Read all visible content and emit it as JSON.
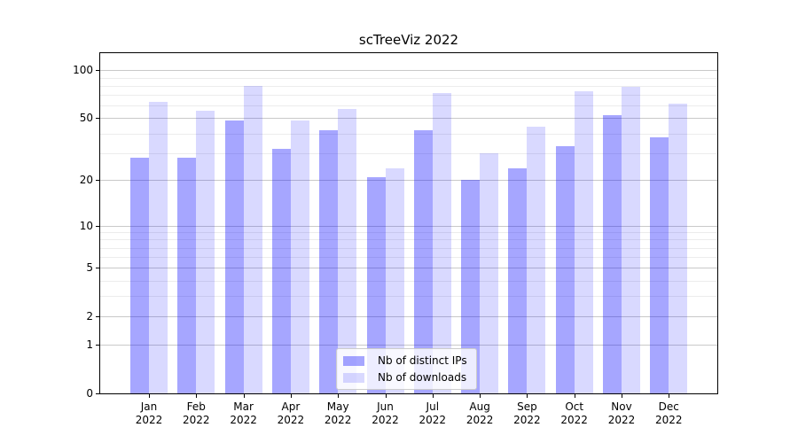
{
  "title": "scTreeViz 2022",
  "chart_data": {
    "type": "bar",
    "title": "scTreeViz 2022",
    "categories": [
      "Jan 2022",
      "Feb 2022",
      "Mar 2022",
      "Apr 2022",
      "May 2022",
      "Jun 2022",
      "Jul 2022",
      "Aug 2022",
      "Sep 2022",
      "Oct 2022",
      "Nov 2022",
      "Dec 2022"
    ],
    "series": [
      {
        "name": "Nb of distinct IPs",
        "color": "rgba(0,0,255,0.35)",
        "color_hex_on_white": "#a6a6f6",
        "values": [
          28,
          28,
          48,
          32,
          42,
          21,
          42,
          20,
          24,
          33,
          52,
          38
        ]
      },
      {
        "name": "Nb of downloads",
        "color": "rgba(0,0,255,0.15)",
        "color_hex_on_white": "#dbdbfb",
        "values": [
          63,
          56,
          80,
          48,
          57,
          24,
          72,
          30,
          44,
          74,
          79,
          62
        ]
      }
    ],
    "xlabel": "",
    "ylabel": "",
    "yscale": "log1p",
    "ylim": [
      0,
      128
    ],
    "yticks": [
      0,
      1,
      2,
      5,
      10,
      20,
      50,
      100
    ],
    "minor_gridlines": [
      3,
      4,
      6,
      7,
      8,
      9,
      30,
      40,
      60,
      70,
      80,
      90
    ],
    "grid": true,
    "legend_position": "lower center"
  },
  "colors": {
    "background": "#ffffff",
    "grid_major": "#c9c9c9",
    "grid_minor": "#ececec",
    "axis": "#000000",
    "legend_border": "#cccccc",
    "legend_background": "rgba(255,255,255,0.8)"
  }
}
